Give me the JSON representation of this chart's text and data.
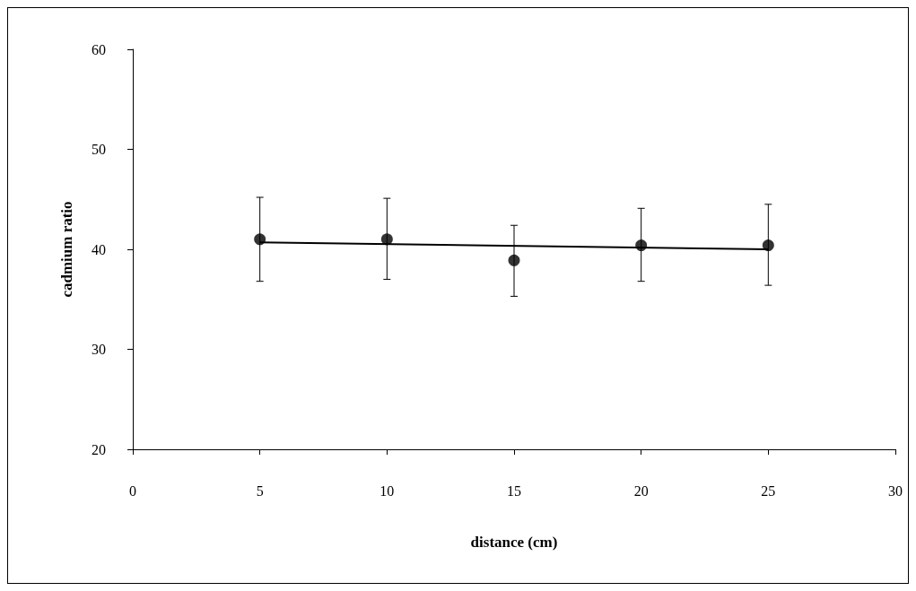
{
  "chart_data": {
    "type": "scatter",
    "xlabel": "distance (cm)",
    "ylabel": "cadmium ratio",
    "x": [
      5,
      10,
      15,
      20,
      25
    ],
    "xlim": [
      0,
      30
    ],
    "xticks": [
      0,
      5,
      10,
      15,
      20,
      25,
      30
    ],
    "ylim": [
      20,
      60
    ],
    "yticks": [
      20,
      30,
      40,
      50,
      60
    ],
    "grid": false,
    "series": [
      {
        "marker": "circle",
        "color": "#000000",
        "values": [
          41.0,
          41.0,
          38.9,
          40.4,
          40.4
        ],
        "errors": [
          [
            36.8,
            45.2
          ],
          [
            37.0,
            45.1
          ],
          [
            35.3,
            42.4
          ],
          [
            36.8,
            44.1
          ],
          [
            36.4,
            44.5
          ]
        ]
      },
      {
        "type": "line",
        "color": "#000000",
        "x": [
          5,
          25
        ],
        "values": [
          40.7,
          40.0
        ]
      }
    ]
  }
}
